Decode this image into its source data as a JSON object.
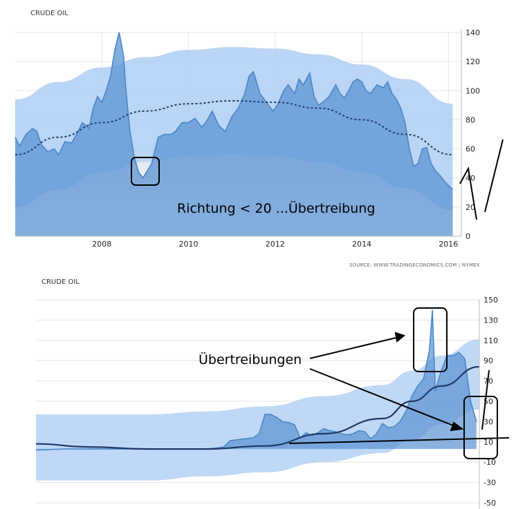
{
  "chart_data": [
    {
      "type": "area",
      "title": "CRUDE OIL",
      "source": "SOURCE: WWW.TRADINGECONOMICS.COM | NYMEX",
      "annotation": "Richtung < 20 ...Übertreibung",
      "xlim": [
        2006,
        2016.3
      ],
      "ylim": [
        0,
        140
      ],
      "x_ticks": [
        "2008",
        "2010",
        "2012",
        "2014",
        "2016"
      ],
      "y_ticks": [
        "140",
        "120",
        "100",
        "80",
        "60",
        "40",
        "20",
        "0"
      ],
      "grid": true,
      "colors": {
        "line": "#4a86c8",
        "fill": "#5b93d3",
        "band": "#a9cbf3",
        "trend": "#1f3a66"
      },
      "series": [
        {
          "x": [
            2006.0,
            2006.1,
            2006.25,
            2006.4,
            2006.5,
            2006.6,
            2006.75,
            2006.9,
            2007.0,
            2007.15,
            2007.3,
            2007.45,
            2007.55,
            2007.7,
            2007.8,
            2007.9,
            2008.0,
            2008.1,
            2008.2,
            2008.3,
            2008.4,
            2008.5,
            2008.55,
            2008.65,
            2008.75,
            2008.85,
            2008.95,
            2009.05,
            2009.15,
            2009.3,
            2009.45,
            2009.6,
            2009.7,
            2009.85,
            2010.0,
            2010.15,
            2010.3,
            2010.4,
            2010.55,
            2010.7,
            2010.85,
            2011.0,
            2011.15,
            2011.3,
            2011.4,
            2011.5,
            2011.65,
            2011.8,
            2011.95,
            2012.05,
            2012.2,
            2012.3,
            2012.45,
            2012.55,
            2012.65,
            2012.8,
            2012.9,
            2013.0,
            2013.1,
            2013.25,
            2013.4,
            2013.5,
            2013.6,
            2013.7,
            2013.8,
            2013.9,
            2014.0,
            2014.1,
            2014.2,
            2014.35,
            2014.5,
            2014.6,
            2014.7,
            2014.8,
            2014.9,
            2015.0,
            2015.1,
            2015.2,
            2015.3,
            2015.4,
            2015.5,
            2015.6,
            2015.7,
            2015.8,
            2015.9,
            2016.0,
            2016.1
          ],
          "y": [
            68,
            62,
            70,
            74,
            72,
            63,
            58,
            60,
            56,
            65,
            64,
            72,
            78,
            74,
            88,
            96,
            92,
            100,
            110,
            128,
            140,
            124,
            102,
            72,
            54,
            44,
            40,
            45,
            50,
            68,
            70,
            70,
            72,
            78,
            78,
            81,
            75,
            78,
            86,
            76,
            72,
            82,
            88,
            98,
            110,
            113,
            98,
            92,
            86,
            90,
            100,
            104,
            98,
            108,
            104,
            112,
            96,
            90,
            92,
            96,
            104,
            98,
            95,
            100,
            106,
            108,
            106,
            100,
            98,
            104,
            102,
            106,
            98,
            94,
            88,
            78,
            60,
            48,
            50,
            60,
            61,
            50,
            45,
            42,
            38,
            35,
            32
          ]
        }
      ],
      "band_upper": [
        94,
        106,
        116,
        123,
        128,
        130,
        129,
        125,
        118,
        108,
        91
      ],
      "band_lower": [
        20,
        32,
        44,
        51,
        55,
        56,
        55,
        51,
        44,
        33,
        18
      ],
      "band_x": [
        2006,
        2007,
        2008,
        2009,
        2010,
        2011,
        2012,
        2013,
        2014,
        2015,
        2016.1
      ],
      "trend_y": [
        56,
        68,
        78,
        86,
        91,
        93,
        92,
        88,
        80,
        70,
        56
      ],
      "highlight_box": "2009 low"
    },
    {
      "type": "area",
      "title": "CRUDE OIL",
      "annotation": "Übertreibungen",
      "xlim": [
        1941,
        2016.5
      ],
      "ylim": [
        -50,
        150
      ],
      "y_ticks": [
        "150",
        "130",
        "110",
        "90",
        "70",
        "50",
        "30",
        "10",
        "-10",
        "-30",
        "-50"
      ],
      "grid": true,
      "colors": {
        "line": "#4a86c8",
        "fill": "#5b93d3",
        "band": "#a9cbf3",
        "trend": "#1f3a66"
      },
      "series": [
        {
          "x": [
            1941,
            1946,
            1950,
            1955,
            1960,
            1965,
            1970,
            1972,
            1973,
            1974,
            1975,
            1978,
            1979,
            1980,
            1981,
            1982,
            1983,
            1984,
            1985,
            1986,
            1987,
            1988,
            1989,
            1990,
            1991,
            1992,
            1993,
            1994,
            1995,
            1996,
            1997,
            1998,
            1999,
            2000,
            2001,
            2002,
            2003,
            2004,
            2005,
            2006,
            2007,
            2008,
            2008.5,
            2009,
            2010,
            2011,
            2012,
            2013,
            2014,
            2015,
            2016
          ],
          "y": [
            2,
            3,
            3,
            3,
            3,
            3,
            3,
            4,
            5,
            11,
            12,
            14,
            18,
            37,
            37,
            34,
            30,
            29,
            27,
            14,
            19,
            16,
            19,
            23,
            21,
            20,
            18,
            17,
            18,
            21,
            20,
            13,
            18,
            28,
            24,
            25,
            30,
            40,
            55,
            65,
            72,
            100,
            140,
            60,
            80,
            95,
            95,
            98,
            92,
            50,
            30
          ]
        }
      ],
      "band_upper": [
        37,
        37,
        37,
        40,
        45,
        55,
        66,
        80,
        95,
        111
      ],
      "band_lower": [
        -28,
        -28,
        -28,
        -24,
        -20,
        -10,
        -1,
        12,
        27,
        42
      ],
      "band_x": [
        1941,
        1950,
        1960,
        1970,
        1980,
        1990,
        2000,
        2005,
        2010,
        2016.5
      ],
      "trend_y": [
        8,
        5,
        3,
        3,
        6,
        18,
        33,
        50,
        65,
        84
      ],
      "highlight_boxes": [
        "2008 peak",
        "2015-2016 low"
      ]
    }
  ]
}
